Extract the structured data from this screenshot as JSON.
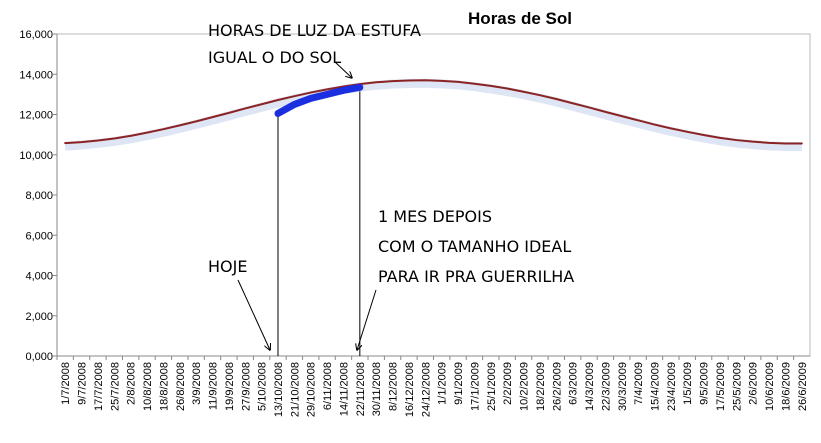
{
  "chart_data": {
    "type": "line",
    "title": "Horas de Sol",
    "categories": [
      "1/7/2008",
      "9/7/2008",
      "17/7/2008",
      "25/7/2008",
      "2/8/2008",
      "10/8/2008",
      "18/8/2008",
      "26/8/2008",
      "3/9/2008",
      "11/9/2008",
      "19/9/2008",
      "27/9/2008",
      "5/10/2008",
      "13/10/2008",
      "21/10/2008",
      "29/10/2008",
      "6/11/2008",
      "14/11/2008",
      "22/11/2008",
      "30/11/2008",
      "8/12/2008",
      "16/12/2008",
      "24/12/2008",
      "1/1/2009",
      "9/1/2009",
      "17/1/2009",
      "25/1/2009",
      "2/2/2009",
      "10/2/2009",
      "18/2/2009",
      "26/2/2009",
      "6/3/2009",
      "14/3/2009",
      "22/3/2009",
      "30/3/2009",
      "7/4/2009",
      "15/4/2009",
      "23/4/2009",
      "1/5/2009",
      "9/5/2009",
      "17/5/2009",
      "25/5/2009",
      "2/6/2009",
      "10/6/2009",
      "18/6/2009",
      "26/6/2009"
    ],
    "series": [
      {
        "color": "#8b2323",
        "values": [
          10.58,
          10.63,
          10.71,
          10.81,
          10.94,
          11.1,
          11.27,
          11.46,
          11.66,
          11.87,
          12.08,
          12.3,
          12.51,
          12.72,
          12.91,
          13.09,
          13.25,
          13.39,
          13.51,
          13.6,
          13.66,
          13.69,
          13.7,
          13.67,
          13.62,
          13.53,
          13.42,
          13.29,
          13.13,
          12.96,
          12.77,
          12.56,
          12.35,
          12.13,
          11.92,
          11.71,
          11.5,
          11.31,
          11.14,
          10.98,
          10.84,
          10.73,
          10.65,
          10.59,
          10.56,
          10.56
        ]
      },
      {
        "color": "#1a2fe0",
        "values": [
          null,
          null,
          null,
          null,
          null,
          null,
          null,
          null,
          null,
          null,
          null,
          null,
          null,
          12.05,
          12.5,
          12.8,
          13.0,
          13.2,
          13.35,
          null,
          null,
          null,
          null,
          null,
          null,
          null,
          null,
          null,
          null,
          null,
          null,
          null,
          null,
          null,
          null,
          null,
          null,
          null,
          null,
          null,
          null,
          null,
          null,
          null,
          null,
          null
        ]
      }
    ],
    "ylim": [
      0,
      16
    ],
    "yticks": [
      {
        "value": 0,
        "label": "0,000"
      },
      {
        "value": 2,
        "label": "2,000"
      },
      {
        "value": 4,
        "label": "4,000"
      },
      {
        "value": 6,
        "label": "6,000"
      },
      {
        "value": 8,
        "label": "8,000"
      },
      {
        "value": 10,
        "label": "10,000"
      },
      {
        "value": 12,
        "label": "12,000"
      },
      {
        "value": 14,
        "label": "14,000"
      },
      {
        "value": 16,
        "label": "16,000"
      }
    ],
    "grid": false,
    "annotations": [
      {
        "lines": [
          "HORAS DE LUZ DA ESTUFA",
          "IGUAL O DO SOL"
        ]
      },
      {
        "lines": [
          "HOJE"
        ]
      },
      {
        "lines": [
          "1 MES DEPOIS",
          "COM O TAMANHO IDEAL",
          "PARA IR PRA GUERRILHA"
        ]
      }
    ]
  }
}
